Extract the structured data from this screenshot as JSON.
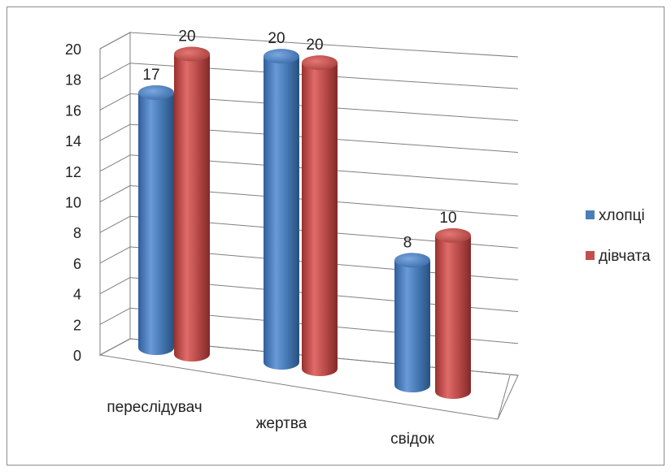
{
  "chart_data": {
    "type": "bar",
    "variant": "3d-cylinder-clustered",
    "categories": [
      "переслідувач",
      "жертва",
      "свідок"
    ],
    "series": [
      {
        "name": "хлопці",
        "values": [
          17,
          20,
          8
        ],
        "color": "#4a7ebb"
      },
      {
        "name": "дівчата",
        "values": [
          20,
          20,
          10
        ],
        "color": "#c0504d"
      }
    ],
    "yticks": [
      "0",
      "2",
      "4",
      "6",
      "8",
      "10",
      "12",
      "14",
      "16",
      "18",
      "20"
    ],
    "ylim": [
      0,
      20
    ],
    "grid": true,
    "legend_position": "right"
  }
}
